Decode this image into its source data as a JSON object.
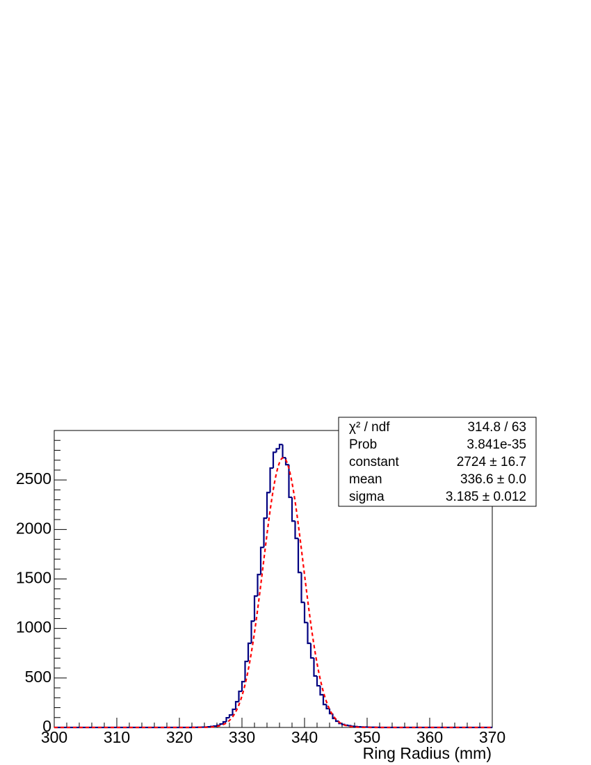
{
  "chart_data": {
    "type": "histogram",
    "x_label": "Ring Radius (mm)",
    "bins": [
      300,
      300.5,
      301,
      301.5,
      302,
      302.5,
      303,
      303.5,
      304,
      304.5,
      305,
      305.5,
      306,
      306.5,
      307,
      307.5,
      308,
      308.5,
      309,
      309.5,
      310,
      310.5,
      311,
      311.5,
      312,
      312.5,
      313,
      313.5,
      314,
      314.5,
      315,
      315.5,
      316,
      316.5,
      317,
      317.5,
      318,
      318.5,
      319,
      319.5,
      320,
      320.5,
      321,
      321.5,
      322,
      322.5,
      323,
      323.5,
      324,
      324.5,
      325,
      325.5,
      326,
      326.5,
      327,
      327.5,
      328,
      328.5,
      329,
      329.5,
      330,
      330.5,
      331,
      331.5,
      332,
      332.5,
      333,
      333.5,
      334,
      334.5,
      335,
      335.5,
      336,
      336.5,
      337,
      337.5,
      338,
      338.5,
      339,
      339.5,
      340,
      340.5,
      341,
      341.5,
      342,
      342.5,
      343,
      343.5,
      344,
      344.5,
      345,
      345.5,
      346,
      346.5,
      347,
      347.5,
      348,
      348.5,
      349,
      349.5,
      350,
      350.5,
      351,
      351.5,
      352,
      352.5,
      353,
      353.5,
      354,
      354.5,
      355,
      355.5,
      356,
      356.5,
      357,
      357.5,
      358,
      358.5,
      359,
      359.5,
      360,
      360.5,
      361,
      361.5,
      362,
      362.5,
      363,
      363.5,
      364,
      364.5,
      365,
      365.5,
      366,
      366.5,
      367,
      367.5,
      368,
      368.5,
      369,
      369.5,
      370
    ],
    "values": [
      0,
      0,
      0,
      0,
      0,
      0,
      0,
      0,
      0,
      0,
      0,
      0,
      0,
      0,
      0,
      0,
      0,
      0,
      0,
      0,
      0,
      0,
      0,
      0,
      0,
      0,
      0,
      0,
      0,
      0,
      0,
      0,
      0,
      0,
      0,
      0,
      0,
      0,
      0,
      0,
      0,
      0,
      0,
      0,
      1,
      1,
      2,
      3,
      4,
      6,
      10,
      14,
      21,
      35,
      56,
      98,
      126,
      183,
      260,
      365,
      463,
      667,
      850,
      1074,
      1327,
      1545,
      1819,
      2114,
      2373,
      2620,
      2780,
      2815,
      2858,
      2725,
      2655,
      2325,
      2085,
      1910,
      1566,
      1264,
      1060,
      850,
      702,
      520,
      421,
      330,
      232,
      190,
      140,
      91,
      63,
      40,
      30,
      22,
      18,
      12,
      9,
      6,
      5,
      4,
      3,
      2,
      2,
      1,
      0,
      0,
      0,
      0,
      0,
      0,
      0,
      0,
      0,
      0,
      0,
      0,
      0,
      0,
      0,
      0,
      0,
      0,
      0,
      0,
      0,
      0,
      0,
      0,
      0,
      0,
      0,
      0,
      0,
      0,
      0,
      0,
      0,
      0,
      0,
      0
    ],
    "color": "#000080",
    "fit": {
      "type": "gaus",
      "constant": 2724,
      "mean": 336.6,
      "sigma": 3.185,
      "color": "#ff0000"
    },
    "stats": [
      {
        "name": "χ² / ndf",
        "value": "314.8 / 63"
      },
      {
        "name": "Prob",
        "value": "3.841e-35"
      },
      {
        "name": "constant",
        "value": "2724 ± 16.7"
      },
      {
        "name": "mean",
        "value": "336.6 ± 0.0"
      },
      {
        "name": "sigma",
        "value": "3.185 ± 0.012"
      }
    ],
    "xlim": [
      300,
      370
    ],
    "xticks": [
      300,
      310,
      320,
      330,
      340,
      350,
      360,
      370
    ],
    "ylim": [
      0,
      3000
    ],
    "yticks": [
      0,
      500,
      1000,
      1500,
      2000,
      2500
    ]
  }
}
